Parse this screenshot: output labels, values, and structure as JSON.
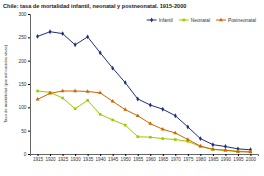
{
  "chart_data": {
    "type": "line",
    "title": "Chile: tasa de mortalidad infantil, neonatal y postneonatal. 1915-2000",
    "y_label": "Tasa de mortalidad (por mil nacidos vivos)",
    "x": [
      1915,
      1920,
      1925,
      1930,
      1935,
      1940,
      1945,
      1950,
      1955,
      1960,
      1965,
      1970,
      1975,
      1980,
      1985,
      1990,
      1995,
      2000
    ],
    "series": [
      {
        "name": "Infantil",
        "color": "#1f2f7a",
        "marker": "diamond",
        "values": [
          252,
          262,
          258,
          234,
          251,
          217,
          184,
          153,
          118,
          105,
          96,
          82,
          58,
          33,
          20,
          16,
          11,
          9
        ]
      },
      {
        "name": "Neonatal",
        "color": "#99cc00",
        "marker": "square",
        "values": [
          135,
          132,
          120,
          97,
          115,
          85,
          73,
          62,
          37,
          36,
          33,
          31,
          27,
          16,
          10,
          8,
          6,
          5
        ]
      },
      {
        "name": "Postneonatal",
        "color": "#cc6600",
        "marker": "triangle",
        "values": [
          117,
          130,
          135,
          135,
          134,
          131,
          113,
          95,
          82,
          65,
          53,
          45,
          31,
          17,
          10,
          8,
          5,
          4
        ]
      }
    ],
    "xlim": [
      1912,
      2003
    ],
    "xticks": [
      1915,
      1920,
      1925,
      1930,
      1935,
      1940,
      1945,
      1950,
      1955,
      1960,
      1965,
      1970,
      1975,
      1980,
      1985,
      1990,
      1995,
      2000
    ],
    "ylim": [
      0,
      300
    ],
    "yticks": [
      0,
      50,
      100,
      150,
      200,
      250,
      300
    ],
    "grid": false,
    "legend": "top-right"
  }
}
